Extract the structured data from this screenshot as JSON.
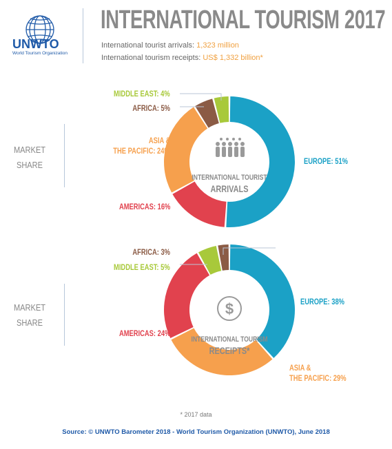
{
  "header": {
    "logo_text": "UNWTO",
    "logo_subtext": "World Tourism Organization",
    "title": "INTERNATIONAL TOURISM 2017",
    "arrivals_label": "International tourist arrivals: ",
    "arrivals_value": "1,323 million",
    "receipts_label": "International tourism receipts: ",
    "receipts_value": "US$ 1,332 billion*"
  },
  "side_labels": {
    "market_share_1": "MARKET SHARE",
    "market_share_2": "MARKET SHARE"
  },
  "chart_data": [
    {
      "type": "pie",
      "variant": "donut",
      "center_label_line1": "INTERNATIONAL TOURIST",
      "center_label_line2": "ARRIVALS",
      "center_icon": "people-icon",
      "slices": [
        {
          "label": "EUROPE: 51%",
          "value": 51,
          "color": "#1ba1c6"
        },
        {
          "label": "AMERICAS: 16%",
          "value": 16,
          "color": "#e1424e"
        },
        {
          "label": "ASIA & THE PACIFIC: 24%",
          "value": 24,
          "color": "#f6a04d"
        },
        {
          "label": "AFRICA: 5%",
          "value": 5,
          "color": "#8b5b45"
        },
        {
          "label": "MIDDLE EAST: 4%",
          "value": 4,
          "color": "#a8c93a"
        }
      ]
    },
    {
      "type": "pie",
      "variant": "donut",
      "center_label_line1": "INTERNATIONAL TOURISM",
      "center_label_line2": "RECEIPTS*",
      "center_icon": "dollar-icon",
      "slices": [
        {
          "label": "EUROPE: 38%",
          "value": 38,
          "color": "#1ba1c6"
        },
        {
          "label": "ASIA & THE PACIFIC: 29%",
          "value": 29,
          "color": "#f6a04d"
        },
        {
          "label": "AMERICAS: 24%",
          "value": 24,
          "color": "#e1424e"
        },
        {
          "label": "MIDDLE EAST: 5%",
          "value": 5,
          "color": "#a8c93a"
        },
        {
          "label": "AFRICA: 3%",
          "value": 3,
          "color": "#8b5b45"
        }
      ]
    }
  ],
  "labels": {
    "c1_europe": "EUROPE: 51%",
    "c1_americas": "AMERICAS: 16%",
    "c1_asia_1": "ASIA &",
    "c1_asia_2": "THE PACIFIC: 24%",
    "c1_africa": "AFRICA: 5%",
    "c1_me": "MIDDLE EAST: 4%",
    "c2_europe": "EUROPE: 38%",
    "c2_asia_1": "ASIA &",
    "c2_asia_2": "THE PACIFIC: 29%",
    "c2_americas": "AMERICAS: 24%",
    "c2_me": "MIDDLE EAST: 5%",
    "c2_africa": "AFRICA: 3%"
  },
  "footer": {
    "footnote": "* 2017 data",
    "source": "Source: © UNWTO Barometer 2018 - World Tourism Organization (UNWTO), June 2018"
  }
}
